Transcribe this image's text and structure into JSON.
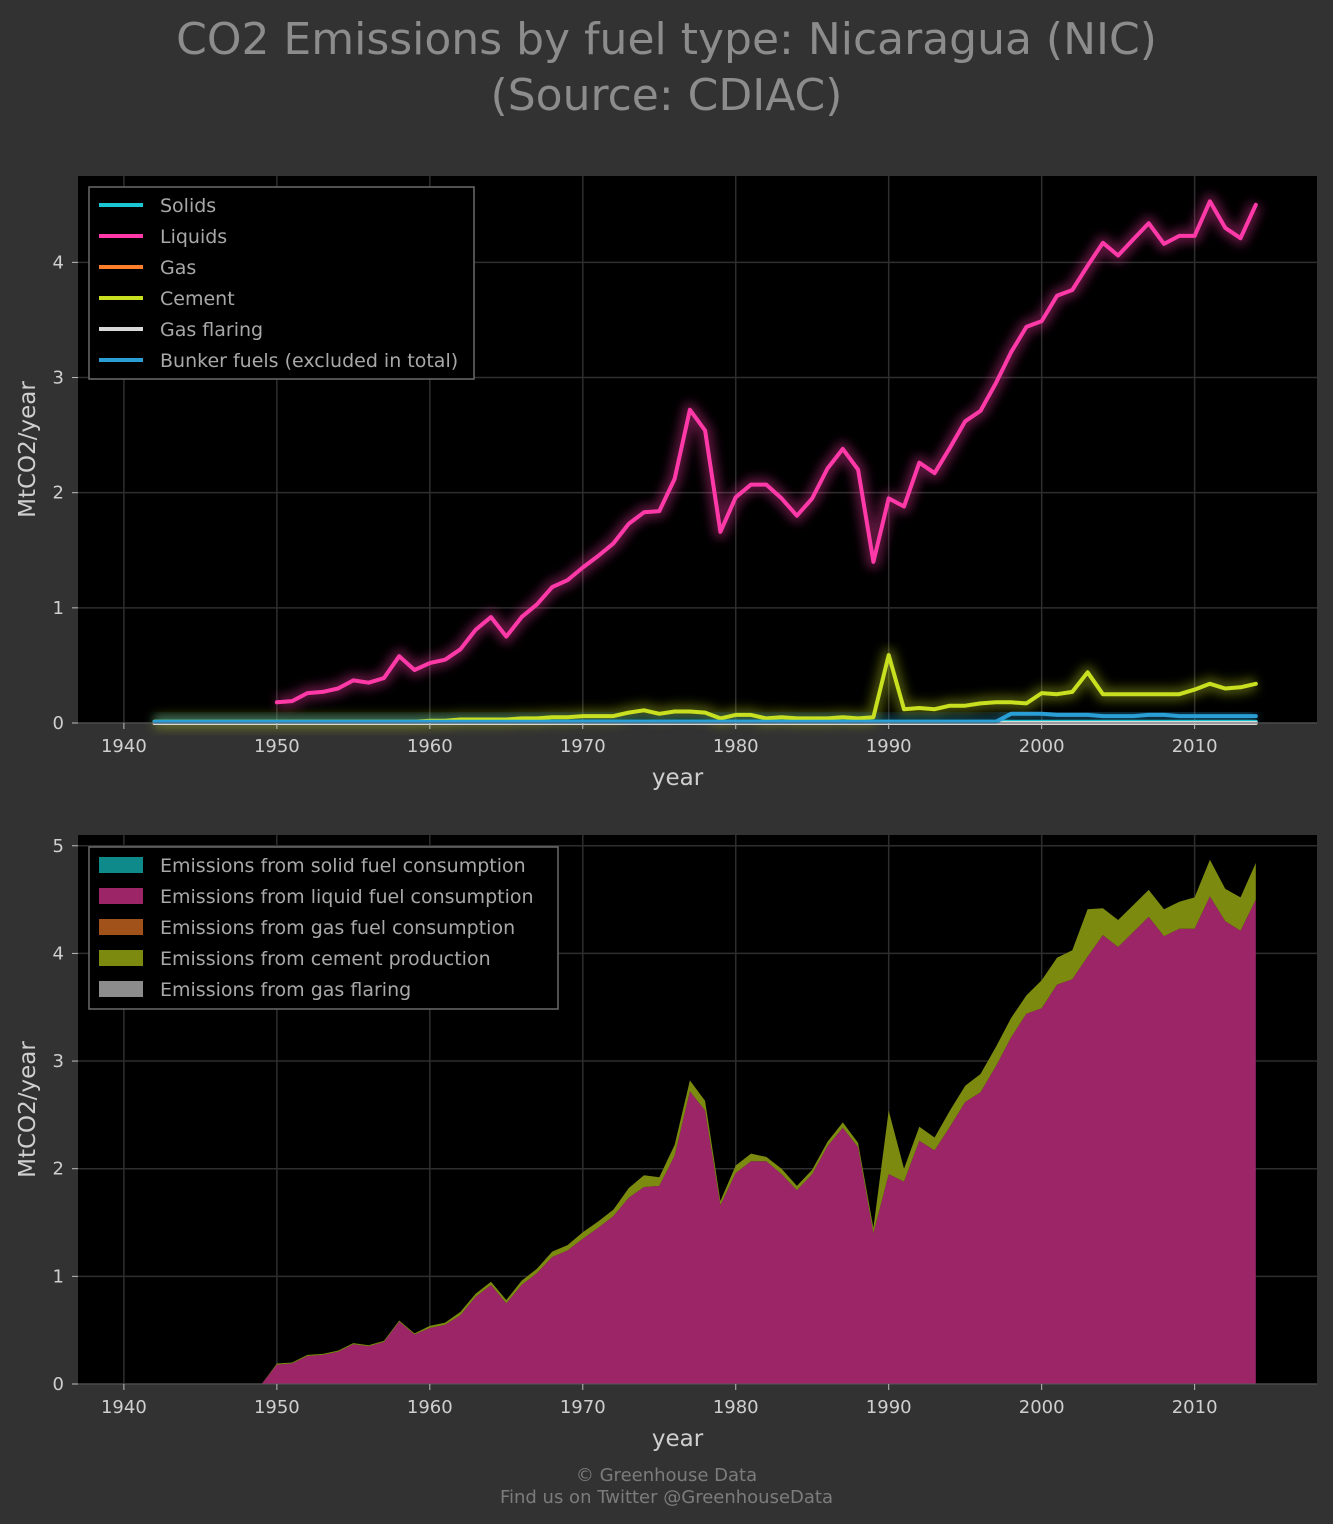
{
  "page": {
    "title_line1": "CO2 Emissions by fuel type: Nicaragua (NIC)",
    "title_line2": "(Source: CDIAC)",
    "footer_line1": "© Greenhouse Data",
    "footer_line2": "Find us on Twitter @GreenhouseData"
  },
  "colors": {
    "background": "#323232",
    "plot_bg": "#000000",
    "solids": "#1ac6d4",
    "liquids": "#ff3aa8",
    "gas": "#ff7f2a",
    "cement": "#c8e020",
    "gas_flaring": "#d8d8d8",
    "bunker": "#2a9fd6",
    "area_solid": "#0e8a8a",
    "area_liquid": "#9c2568",
    "area_gas": "#a0521a",
    "area_cement": "#7c8a10",
    "area_flaring": "#8c8c8c"
  },
  "chart_data": [
    {
      "type": "line",
      "xlabel": "year",
      "ylabel": "MtCO2/year",
      "xlim": [
        1937,
        2018
      ],
      "ylim": [
        0,
        4.75
      ],
      "xticks": [
        1940,
        1950,
        1960,
        1970,
        1980,
        1990,
        2000,
        2010
      ],
      "yticks": [
        0,
        1,
        2,
        3,
        4
      ],
      "grid": true,
      "legend_position": "top-left",
      "x": [
        1942,
        1943,
        1944,
        1945,
        1946,
        1947,
        1948,
        1949,
        1950,
        1951,
        1952,
        1953,
        1954,
        1955,
        1956,
        1957,
        1958,
        1959,
        1960,
        1961,
        1962,
        1963,
        1964,
        1965,
        1966,
        1967,
        1968,
        1969,
        1970,
        1971,
        1972,
        1973,
        1974,
        1975,
        1976,
        1977,
        1978,
        1979,
        1980,
        1981,
        1982,
        1983,
        1984,
        1985,
        1986,
        1987,
        1988,
        1989,
        1990,
        1991,
        1992,
        1993,
        1994,
        1995,
        1996,
        1997,
        1998,
        1999,
        2000,
        2001,
        2002,
        2003,
        2004,
        2005,
        2006,
        2007,
        2008,
        2009,
        2010,
        2011,
        2012,
        2013,
        2014
      ],
      "series": [
        {
          "name": "Solids",
          "color_key": "solids",
          "values": [
            0.01,
            0.01,
            0.01,
            0.01,
            0.01,
            0.01,
            0.01,
            0.01,
            0.01,
            0.01,
            0.01,
            0.01,
            0.01,
            0.01,
            0.01,
            0.01,
            0.01,
            0.01,
            0.01,
            0.01,
            0.01,
            0.01,
            0.01,
            0.01,
            0.01,
            0.01,
            0.01,
            0.01,
            0.01,
            0.01,
            0.01,
            0.01,
            0.01,
            0.01,
            0.01,
            0.01,
            0.01,
            0.01,
            0.01,
            0.01,
            0.01,
            0.01,
            0.01,
            0.01,
            0.01,
            0.01,
            0.01,
            0.01,
            0.01,
            0.01,
            0.01,
            0.01,
            0.01,
            0.01,
            0.01,
            0.01,
            0.01,
            0.01,
            0.01,
            0.01,
            0.01,
            0.01,
            0.01,
            0.01,
            0.01,
            0.01,
            0.01,
            0.01,
            0.01,
            0.01,
            0.01,
            0.01,
            0.01
          ]
        },
        {
          "name": "Liquids",
          "color_key": "liquids",
          "values": [
            null,
            null,
            null,
            null,
            null,
            null,
            null,
            null,
            0.18,
            0.19,
            0.26,
            0.27,
            0.3,
            0.37,
            0.35,
            0.39,
            0.58,
            0.46,
            0.52,
            0.55,
            0.64,
            0.81,
            0.92,
            0.75,
            0.92,
            1.03,
            1.18,
            1.24,
            1.35,
            1.45,
            1.56,
            1.73,
            1.83,
            1.84,
            2.12,
            2.72,
            2.54,
            1.66,
            1.96,
            2.07,
            2.07,
            1.95,
            1.8,
            1.95,
            2.21,
            2.38,
            2.2,
            1.4,
            1.95,
            1.88,
            2.26,
            2.17,
            2.39,
            2.62,
            2.71,
            2.95,
            3.22,
            3.44,
            3.49,
            3.71,
            3.76,
            3.97,
            4.17,
            4.06,
            4.2,
            4.34,
            4.16,
            4.23,
            4.23,
            4.53,
            4.3,
            4.21,
            4.5
          ]
        },
        {
          "name": "Gas",
          "color_key": "gas",
          "values": [
            0.0,
            0.0,
            0.0,
            0.0,
            0.0,
            0.0,
            0.0,
            0.0,
            0.0,
            0.0,
            0.0,
            0.0,
            0.0,
            0.0,
            0.0,
            0.0,
            0.0,
            0.0,
            0.0,
            0.0,
            0.0,
            0.0,
            0.0,
            0.0,
            0.0,
            0.0,
            0.0,
            0.0,
            0.0,
            0.0,
            0.0,
            0.0,
            0.0,
            0.0,
            0.0,
            0.0,
            0.0,
            0.0,
            0.0,
            0.0,
            0.0,
            0.0,
            0.0,
            0.0,
            0.0,
            0.0,
            0.0,
            0.0,
            0.0,
            0.0,
            0.0,
            0.0,
            0.0,
            0.0,
            0.0,
            0.0,
            0.0,
            0.0,
            0.0,
            0.0,
            0.0,
            0.0,
            0.0,
            0.0,
            0.0,
            0.0,
            0.0,
            0.0,
            0.0,
            0.0,
            0.0,
            0.0,
            0.0
          ]
        },
        {
          "name": "Cement",
          "color_key": "cement",
          "values": [
            0.01,
            0.01,
            0.01,
            0.01,
            0.01,
            0.01,
            0.01,
            0.01,
            0.01,
            0.01,
            0.01,
            0.01,
            0.01,
            0.01,
            0.01,
            0.01,
            0.01,
            0.01,
            0.02,
            0.02,
            0.03,
            0.03,
            0.03,
            0.03,
            0.04,
            0.04,
            0.05,
            0.05,
            0.06,
            0.06,
            0.06,
            0.09,
            0.11,
            0.08,
            0.1,
            0.1,
            0.09,
            0.04,
            0.07,
            0.07,
            0.04,
            0.05,
            0.04,
            0.04,
            0.04,
            0.05,
            0.04,
            0.05,
            0.59,
            0.12,
            0.13,
            0.12,
            0.15,
            0.15,
            0.17,
            0.18,
            0.18,
            0.17,
            0.26,
            0.25,
            0.27,
            0.44,
            0.25,
            0.25,
            0.25,
            0.25,
            0.25,
            0.25,
            0.29,
            0.34,
            0.3,
            0.31,
            0.34
          ]
        },
        {
          "name": "Gas flaring",
          "color_key": "gas_flaring",
          "values": [
            0.0,
            0.0,
            0.0,
            0.0,
            0.0,
            0.0,
            0.0,
            0.0,
            0.0,
            0.0,
            0.0,
            0.0,
            0.0,
            0.0,
            0.0,
            0.0,
            0.0,
            0.0,
            0.0,
            0.0,
            0.0,
            0.0,
            0.0,
            0.0,
            0.0,
            0.0,
            0.0,
            0.0,
            0.0,
            0.0,
            0.0,
            0.0,
            0.0,
            0.0,
            0.0,
            0.0,
            0.0,
            0.0,
            0.0,
            0.0,
            0.0,
            0.0,
            0.0,
            0.0,
            0.0,
            0.0,
            0.0,
            0.0,
            0.0,
            0.0,
            0.0,
            0.0,
            0.0,
            0.0,
            0.0,
            0.0,
            0.0,
            0.0,
            0.0,
            0.0,
            0.0,
            0.0,
            0.0,
            0.0,
            0.0,
            0.0,
            0.0,
            0.0,
            0.0,
            0.0,
            0.0,
            0.0,
            0.0
          ]
        },
        {
          "name": "Bunker fuels (excluded in total)",
          "color_key": "bunker",
          "values": [
            0.01,
            0.01,
            0.01,
            0.01,
            0.01,
            0.01,
            0.01,
            0.01,
            0.01,
            0.01,
            0.01,
            0.01,
            0.01,
            0.01,
            0.01,
            0.01,
            0.01,
            0.01,
            0.01,
            0.01,
            0.01,
            0.01,
            0.01,
            0.01,
            0.01,
            0.01,
            0.01,
            0.01,
            0.01,
            0.01,
            0.01,
            0.01,
            0.01,
            0.01,
            0.01,
            0.01,
            0.01,
            0.01,
            0.01,
            0.01,
            0.01,
            0.01,
            0.01,
            0.01,
            0.01,
            0.01,
            0.01,
            0.01,
            0.01,
            0.01,
            0.01,
            0.01,
            0.01,
            0.01,
            0.01,
            0.01,
            0.08,
            0.08,
            0.08,
            0.07,
            0.07,
            0.07,
            0.06,
            0.06,
            0.06,
            0.07,
            0.07,
            0.06,
            0.06,
            0.06,
            0.06,
            0.06,
            0.06
          ]
        }
      ]
    },
    {
      "type": "area",
      "stacked": true,
      "xlabel": "year",
      "ylabel": "MtCO2/year",
      "xlim": [
        1937,
        2018
      ],
      "ylim": [
        0,
        5.1
      ],
      "xticks": [
        1940,
        1950,
        1960,
        1970,
        1980,
        1990,
        2000,
        2010
      ],
      "yticks": [
        0,
        1,
        2,
        3,
        4,
        5
      ],
      "grid": true,
      "legend_position": "top-left",
      "x": [
        1942,
        1943,
        1944,
        1945,
        1946,
        1947,
        1948,
        1949,
        1950,
        1951,
        1952,
        1953,
        1954,
        1955,
        1956,
        1957,
        1958,
        1959,
        1960,
        1961,
        1962,
        1963,
        1964,
        1965,
        1966,
        1967,
        1968,
        1969,
        1970,
        1971,
        1972,
        1973,
        1974,
        1975,
        1976,
        1977,
        1978,
        1979,
        1980,
        1981,
        1982,
        1983,
        1984,
        1985,
        1986,
        1987,
        1988,
        1989,
        1990,
        1991,
        1992,
        1993,
        1994,
        1995,
        1996,
        1997,
        1998,
        1999,
        2000,
        2001,
        2002,
        2003,
        2004,
        2005,
        2006,
        2007,
        2008,
        2009,
        2010,
        2011,
        2012,
        2013,
        2014
      ],
      "series": [
        {
          "name": "Emissions from solid fuel consumption",
          "color_key": "area_solid",
          "values": [
            0.0,
            0.0,
            0.0,
            0.0,
            0.0,
            0.0,
            0.0,
            0.0,
            0.0,
            0.0,
            0.0,
            0.0,
            0.0,
            0.0,
            0.0,
            0.0,
            0.0,
            0.0,
            0.0,
            0.0,
            0.0,
            0.0,
            0.0,
            0.0,
            0.0,
            0.0,
            0.0,
            0.0,
            0.0,
            0.0,
            0.0,
            0.0,
            0.0,
            0.0,
            0.0,
            0.0,
            0.0,
            0.0,
            0.0,
            0.0,
            0.0,
            0.0,
            0.0,
            0.0,
            0.0,
            0.0,
            0.0,
            0.0,
            0.0,
            0.0,
            0.0,
            0.0,
            0.0,
            0.0,
            0.0,
            0.0,
            0.0,
            0.0,
            0.0,
            0.0,
            0.0,
            0.0,
            0.0,
            0.0,
            0.0,
            0.0,
            0.0,
            0.0,
            0.0,
            0.0,
            0.0,
            0.0,
            0.0
          ]
        },
        {
          "name": "Emissions from liquid fuel consumption",
          "color_key": "area_liquid",
          "values": [
            0.0,
            0.0,
            0.0,
            0.0,
            0.0,
            0.0,
            0.0,
            0.0,
            0.18,
            0.19,
            0.26,
            0.27,
            0.3,
            0.37,
            0.35,
            0.39,
            0.58,
            0.46,
            0.52,
            0.55,
            0.64,
            0.81,
            0.92,
            0.75,
            0.92,
            1.03,
            1.18,
            1.24,
            1.35,
            1.45,
            1.56,
            1.73,
            1.83,
            1.84,
            2.12,
            2.72,
            2.54,
            1.66,
            1.96,
            2.07,
            2.07,
            1.95,
            1.8,
            1.95,
            2.21,
            2.38,
            2.2,
            1.4,
            1.95,
            1.88,
            2.26,
            2.17,
            2.39,
            2.62,
            2.71,
            2.95,
            3.22,
            3.44,
            3.49,
            3.71,
            3.76,
            3.97,
            4.17,
            4.06,
            4.2,
            4.34,
            4.16,
            4.23,
            4.23,
            4.53,
            4.3,
            4.21,
            4.5
          ]
        },
        {
          "name": "Emissions from gas fuel consumption",
          "color_key": "area_gas",
          "values": [
            0.0,
            0.0,
            0.0,
            0.0,
            0.0,
            0.0,
            0.0,
            0.0,
            0.0,
            0.0,
            0.0,
            0.0,
            0.0,
            0.0,
            0.0,
            0.0,
            0.0,
            0.0,
            0.0,
            0.0,
            0.0,
            0.0,
            0.0,
            0.0,
            0.0,
            0.0,
            0.0,
            0.0,
            0.0,
            0.0,
            0.0,
            0.0,
            0.0,
            0.0,
            0.0,
            0.0,
            0.0,
            0.0,
            0.0,
            0.0,
            0.0,
            0.0,
            0.0,
            0.0,
            0.0,
            0.0,
            0.0,
            0.0,
            0.0,
            0.0,
            0.0,
            0.0,
            0.0,
            0.0,
            0.0,
            0.0,
            0.0,
            0.0,
            0.0,
            0.0,
            0.0,
            0.0,
            0.0,
            0.0,
            0.0,
            0.0,
            0.0,
            0.0,
            0.0,
            0.0,
            0.0,
            0.0,
            0.0
          ]
        },
        {
          "name": "Emissions from cement production",
          "color_key": "area_cement",
          "values": [
            0.0,
            0.0,
            0.0,
            0.0,
            0.0,
            0.0,
            0.0,
            0.0,
            0.01,
            0.01,
            0.01,
            0.01,
            0.01,
            0.01,
            0.01,
            0.01,
            0.01,
            0.01,
            0.02,
            0.02,
            0.03,
            0.03,
            0.03,
            0.03,
            0.04,
            0.04,
            0.05,
            0.05,
            0.06,
            0.06,
            0.06,
            0.09,
            0.11,
            0.08,
            0.1,
            0.1,
            0.09,
            0.04,
            0.07,
            0.07,
            0.04,
            0.05,
            0.04,
            0.04,
            0.04,
            0.05,
            0.04,
            0.05,
            0.59,
            0.12,
            0.13,
            0.12,
            0.15,
            0.15,
            0.17,
            0.18,
            0.18,
            0.17,
            0.26,
            0.25,
            0.27,
            0.44,
            0.25,
            0.25,
            0.25,
            0.25,
            0.25,
            0.25,
            0.29,
            0.34,
            0.3,
            0.31,
            0.34
          ]
        },
        {
          "name": "Emissions from gas flaring",
          "color_key": "area_flaring",
          "values": [
            0.0,
            0.0,
            0.0,
            0.0,
            0.0,
            0.0,
            0.0,
            0.0,
            0.0,
            0.0,
            0.0,
            0.0,
            0.0,
            0.0,
            0.0,
            0.0,
            0.0,
            0.0,
            0.0,
            0.0,
            0.0,
            0.0,
            0.0,
            0.0,
            0.0,
            0.0,
            0.0,
            0.0,
            0.0,
            0.0,
            0.0,
            0.0,
            0.0,
            0.0,
            0.0,
            0.0,
            0.0,
            0.0,
            0.0,
            0.0,
            0.0,
            0.0,
            0.0,
            0.0,
            0.0,
            0.0,
            0.0,
            0.0,
            0.0,
            0.0,
            0.0,
            0.0,
            0.0,
            0.0,
            0.0,
            0.0,
            0.0,
            0.0,
            0.0,
            0.0,
            0.0,
            0.0,
            0.0,
            0.0,
            0.0,
            0.0,
            0.0,
            0.0,
            0.0,
            0.0,
            0.0,
            0.0,
            0.0
          ]
        }
      ]
    }
  ]
}
